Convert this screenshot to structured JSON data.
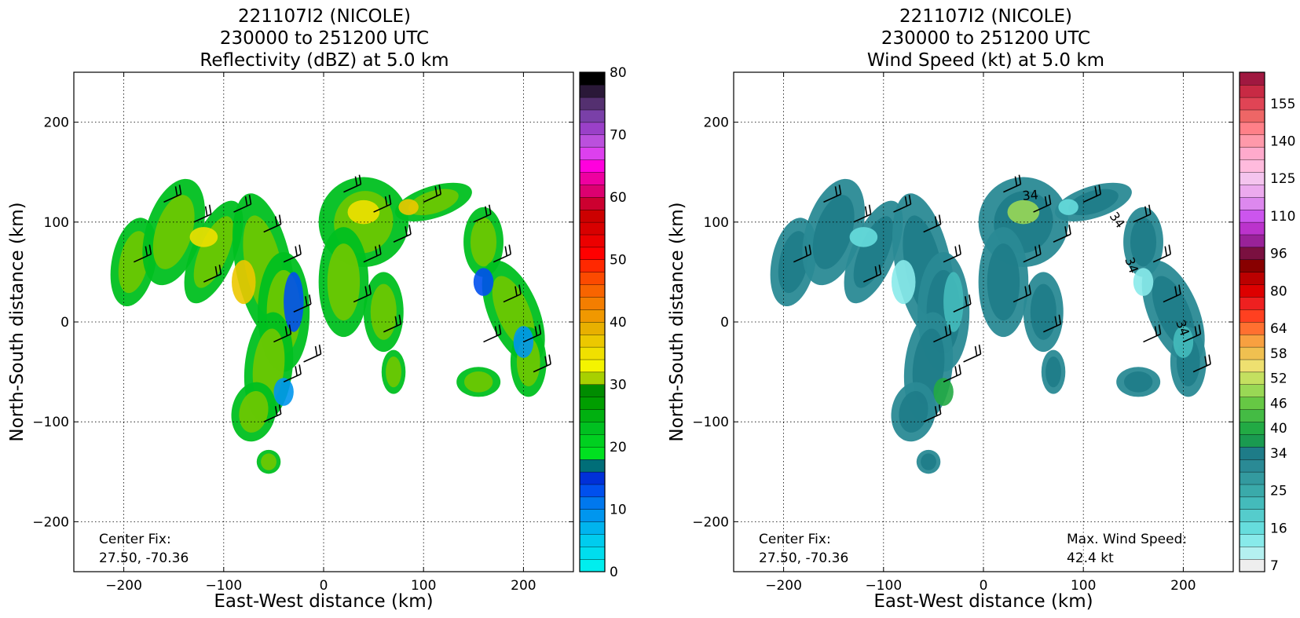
{
  "chart_data": [
    {
      "type": "heatmap",
      "title_lines": [
        "221107I2 (NICOLE)",
        "230000 to 251200 UTC",
        "Reflectivity (dBZ) at 5.0 km"
      ],
      "xlabel": "East-West distance (km)",
      "ylabel": "North-South distance (km)",
      "xlim": [
        -250,
        250
      ],
      "ylim": [
        -250,
        250
      ],
      "xticks": [
        -200,
        -100,
        0,
        100,
        200
      ],
      "yticks": [
        -200,
        -100,
        0,
        100,
        200
      ],
      "xtick_labels": [
        "−200",
        "−100",
        "0",
        "100",
        "200"
      ],
      "ytick_labels": [
        "−200",
        "−100",
        "0",
        "100",
        "200"
      ],
      "grid": true,
      "annotations": [
        "Center Fix:",
        "27.50, -70.36"
      ],
      "colorbar": {
        "min": 0,
        "max": 80,
        "ticks": [
          0,
          10,
          20,
          30,
          40,
          50,
          60,
          70,
          80
        ],
        "tick_labels": [
          "0",
          "10",
          "20",
          "30",
          "40",
          "50",
          "60",
          "70",
          "80"
        ],
        "colors": [
          "#00eeee",
          "#00ddee",
          "#00ccee",
          "#00b4ee",
          "#0096ee",
          "#0078ee",
          "#0050ee",
          "#0030d8",
          "#006e78",
          "#00e020",
          "#00d020",
          "#00c020",
          "#00b010",
          "#009e00",
          "#008c00",
          "#a8d000",
          "#f4f400",
          "#f0e000",
          "#ecc800",
          "#e8b000",
          "#f09800",
          "#f47e00",
          "#f86400",
          "#fc4a00",
          "#ff2800",
          "#ff0000",
          "#ec0000",
          "#d80000",
          "#cc0000",
          "#cc0030",
          "#dc0070",
          "#ee00a0",
          "#ff00dd",
          "#dd40ee",
          "#bb50dd",
          "#9a40c8",
          "#7a40a8",
          "#543070",
          "#2a1838",
          "#000000"
        ]
      }
    },
    {
      "type": "heatmap",
      "title_lines": [
        "221107I2 (NICOLE)",
        "230000 to 251200 UTC",
        "Wind Speed (kt) at 5.0 km"
      ],
      "xlabel": "East-West distance (km)",
      "ylabel": "North-South distance (km)",
      "xlim": [
        -250,
        250
      ],
      "ylim": [
        -250,
        250
      ],
      "xticks": [
        -200,
        -100,
        0,
        100,
        200
      ],
      "yticks": [
        -200,
        -100,
        0,
        100,
        200
      ],
      "xtick_labels": [
        "−200",
        "−100",
        "0",
        "100",
        "200"
      ],
      "ytick_labels": [
        "−200",
        "−100",
        "0",
        "100",
        "200"
      ],
      "grid": true,
      "annotations": [
        "Center Fix:",
        "27.50, -70.36"
      ],
      "max_wind_lines": [
        "Max. Wind Speed:",
        "42.4 kt"
      ],
      "contour_labels": [
        "34",
        "34",
        "34",
        "34"
      ],
      "colorbar": {
        "tick_labels": [
          "7",
          "16",
          "25",
          "34",
          "40",
          "46",
          "52",
          "58",
          "64",
          "80",
          "96",
          "110",
          "125",
          "140",
          "155"
        ],
        "tick_bins": [
          0,
          3,
          6,
          9,
          11,
          13,
          15,
          17,
          19,
          22,
          25,
          28,
          31,
          34,
          37
        ],
        "nbins": 40,
        "colors": [
          "#eeeeee",
          "#b4f0f0",
          "#88eaea",
          "#66dddd",
          "#55cccc",
          "#44bbbb",
          "#3aaaaa",
          "#339a9f",
          "#2a8a95",
          "#1e7c88",
          "#1a9a50",
          "#22aa44",
          "#44bb44",
          "#66c844",
          "#99d855",
          "#c4e060",
          "#eee070",
          "#f0c050",
          "#f8a040",
          "#ff7030",
          "#ff4020",
          "#ee2020",
          "#dd0000",
          "#bb0000",
          "#880000",
          "#7a1040",
          "#992299",
          "#bb33cc",
          "#cc55ee",
          "#dd88ee",
          "#ecaaee",
          "#f4c4ee",
          "#ffbbdd",
          "#ffaacc",
          "#ff99aa",
          "#ff8088",
          "#ee6666",
          "#e04455",
          "#c82a44",
          "#a01840"
        ]
      }
    }
  ]
}
